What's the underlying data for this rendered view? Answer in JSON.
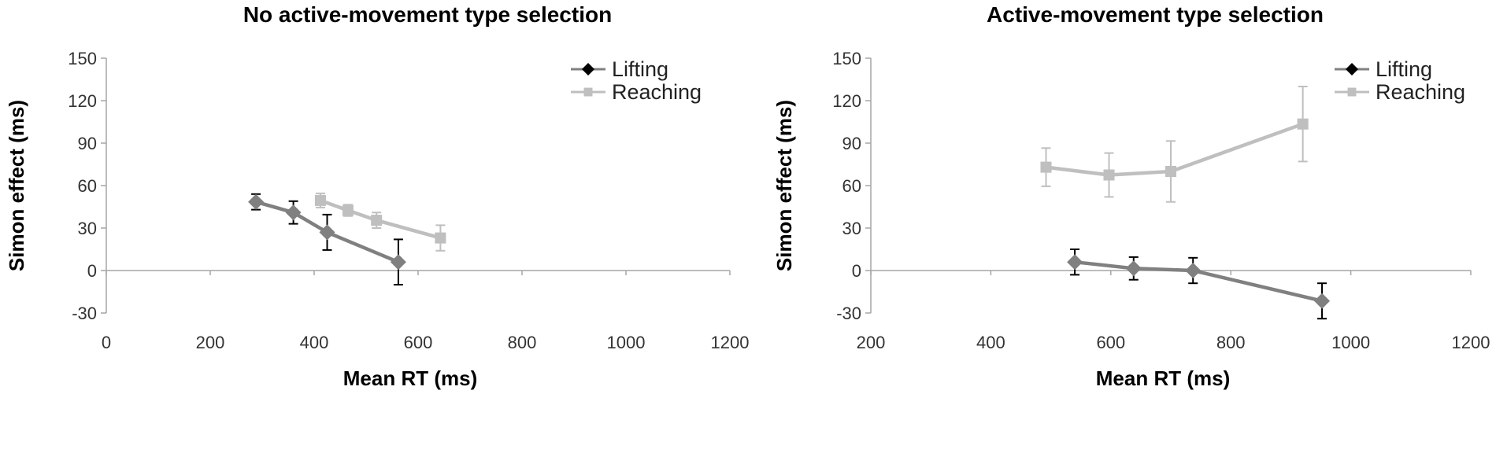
{
  "chart_data": [
    {
      "type": "line",
      "title": "No active-movement type selection",
      "xlabel": "Mean RT (ms)",
      "ylabel": "Simon effect (ms)",
      "xlim": [
        0,
        1200
      ],
      "ylim": [
        -30,
        150
      ],
      "xticks": [
        0,
        200,
        400,
        600,
        800,
        1000,
        1200
      ],
      "yticks": [
        -30,
        0,
        30,
        60,
        90,
        120,
        150
      ],
      "grid": false,
      "legend_position": "top-right",
      "series": [
        {
          "name": "Lifting",
          "marker": "diamond",
          "color": "#808080",
          "legend_marker_color": "#000000",
          "error_bar_color": "#000000",
          "points": [
            {
              "x": 288,
              "y": 48.5,
              "err": 5.5
            },
            {
              "x": 360,
              "y": 41,
              "err": 8
            },
            {
              "x": 425,
              "y": 27,
              "err": 12.5
            },
            {
              "x": 562,
              "y": 6,
              "err": 16
            }
          ]
        },
        {
          "name": "Reaching",
          "marker": "square",
          "color": "#bfbfbf",
          "legend_marker_color": "#bfbfbf",
          "error_bar_color": "#bfbfbf",
          "points": [
            {
              "x": 412,
              "y": 49.5,
              "err": 5
            },
            {
              "x": 465,
              "y": 42.5,
              "err": 4
            },
            {
              "x": 520,
              "y": 35.5,
              "err": 5.5
            },
            {
              "x": 643,
              "y": 23,
              "err": 9
            }
          ]
        }
      ]
    },
    {
      "type": "line",
      "title": "Active-movement type selection",
      "xlabel": "Mean RT (ms)",
      "ylabel": "Simon effect (ms)",
      "xlim": [
        200,
        1200
      ],
      "ylim": [
        -30,
        150
      ],
      "xticks": [
        200,
        400,
        600,
        800,
        1000,
        1200
      ],
      "yticks": [
        -30,
        0,
        30,
        60,
        90,
        120,
        150
      ],
      "grid": false,
      "legend_position": "top-right",
      "series": [
        {
          "name": "Lifting",
          "marker": "diamond",
          "color": "#808080",
          "legend_marker_color": "#000000",
          "error_bar_color": "#000000",
          "points": [
            {
              "x": 540,
              "y": 6,
              "err": 9
            },
            {
              "x": 638,
              "y": 1.5,
              "err": 8
            },
            {
              "x": 737,
              "y": 0,
              "err": 9
            },
            {
              "x": 952,
              "y": -21.5,
              "err": 12.5
            }
          ]
        },
        {
          "name": "Reaching",
          "marker": "square",
          "color": "#bfbfbf",
          "legend_marker_color": "#bfbfbf",
          "error_bar_color": "#bfbfbf",
          "points": [
            {
              "x": 492,
              "y": 73,
              "err": 13.5
            },
            {
              "x": 597,
              "y": 67.5,
              "err": 15.5
            },
            {
              "x": 700,
              "y": 70,
              "err": 21.5
            },
            {
              "x": 920,
              "y": 103.5,
              "err": 26.5
            }
          ]
        }
      ]
    }
  ]
}
